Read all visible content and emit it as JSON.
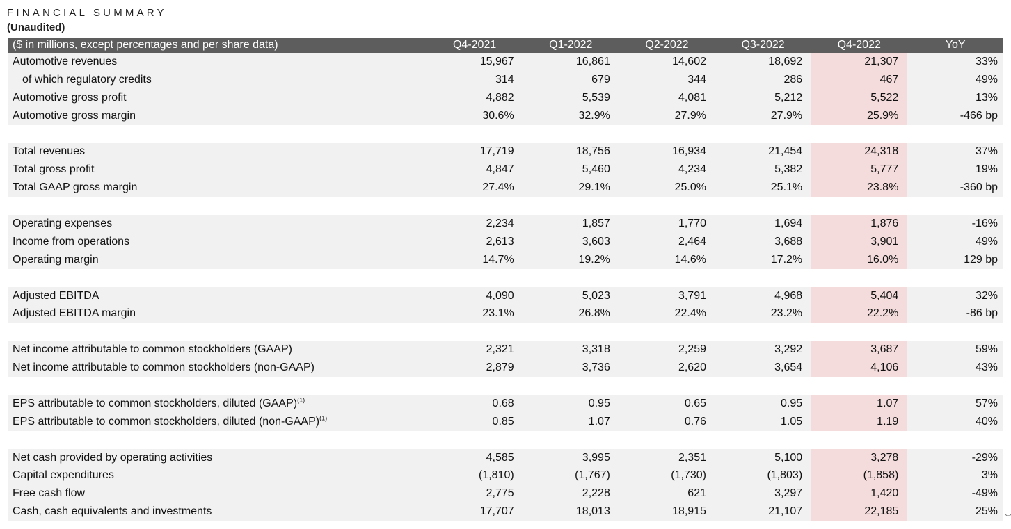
{
  "title": "FINANCIAL SUMMARY",
  "subtitle": "(Unaudited)",
  "header": {
    "label": "($ in millions, except percentages and per share data)",
    "columns": [
      "Q4-2021",
      "Q1-2022",
      "Q2-2022",
      "Q3-2022",
      "Q4-2022",
      "YoY"
    ]
  },
  "highlight_color": "#f5dcdc",
  "header_color": "#5d5d5d",
  "groups": [
    {
      "rows": [
        {
          "label": "Automotive revenues",
          "values": [
            "15,967",
            "16,861",
            "14,602",
            "18,692",
            "21,307"
          ],
          "yoy": "33%"
        },
        {
          "label": "of which regulatory credits",
          "indent": true,
          "values": [
            "314",
            "679",
            "344",
            "286",
            "467"
          ],
          "yoy": "49%"
        },
        {
          "label": "Automotive gross profit",
          "values": [
            "4,882",
            "5,539",
            "4,081",
            "5,212",
            "5,522"
          ],
          "yoy": "13%"
        },
        {
          "label": "Automotive gross margin",
          "values": [
            "30.6%",
            "32.9%",
            "27.9%",
            "27.9%",
            "25.9%"
          ],
          "yoy": "-466 bp"
        }
      ]
    },
    {
      "rows": [
        {
          "label": "Total revenues",
          "values": [
            "17,719",
            "18,756",
            "16,934",
            "21,454",
            "24,318"
          ],
          "yoy": "37%"
        },
        {
          "label": "Total gross profit",
          "values": [
            "4,847",
            "5,460",
            "4,234",
            "5,382",
            "5,777"
          ],
          "yoy": "19%"
        },
        {
          "label": "Total GAAP gross margin",
          "values": [
            "27.4%",
            "29.1%",
            "25.0%",
            "25.1%",
            "23.8%"
          ],
          "yoy": "-360 bp"
        }
      ]
    },
    {
      "rows": [
        {
          "label": "Operating expenses",
          "values": [
            "2,234",
            "1,857",
            "1,770",
            "1,694",
            "1,876"
          ],
          "yoy": "-16%"
        },
        {
          "label": "Income from operations",
          "values": [
            "2,613",
            "3,603",
            "2,464",
            "3,688",
            "3,901"
          ],
          "yoy": "49%"
        },
        {
          "label": "Operating margin",
          "values": [
            "14.7%",
            "19.2%",
            "14.6%",
            "17.2%",
            "16.0%"
          ],
          "yoy": "129 bp"
        }
      ]
    },
    {
      "rows": [
        {
          "label": "Adjusted EBITDA",
          "values": [
            "4,090",
            "5,023",
            "3,791",
            "4,968",
            "5,404"
          ],
          "yoy": "32%"
        },
        {
          "label": "Adjusted EBITDA margin",
          "values": [
            "23.1%",
            "26.8%",
            "22.4%",
            "23.2%",
            "22.2%"
          ],
          "yoy": "-86 bp"
        }
      ]
    },
    {
      "rows": [
        {
          "label": "Net income attributable to common stockholders (GAAP)",
          "values": [
            "2,321",
            "3,318",
            "2,259",
            "3,292",
            "3,687"
          ],
          "yoy": "59%"
        },
        {
          "label": "Net income attributable to common stockholders (non-GAAP)",
          "values": [
            "2,879",
            "3,736",
            "2,620",
            "3,654",
            "4,106"
          ],
          "yoy": "43%"
        }
      ]
    },
    {
      "rows": [
        {
          "label": "EPS attributable to common stockholders, diluted (GAAP)",
          "note": "(1)",
          "values": [
            "0.68",
            "0.95",
            "0.65",
            "0.95",
            "1.07"
          ],
          "yoy": "57%"
        },
        {
          "label": "EPS attributable to common stockholders, diluted (non-GAAP)",
          "note": "(1)",
          "values": [
            "0.85",
            "1.07",
            "0.76",
            "1.05",
            "1.19"
          ],
          "yoy": "40%"
        }
      ]
    },
    {
      "rows": [
        {
          "label": "Net cash provided by operating activities",
          "values": [
            "4,585",
            "3,995",
            "2,351",
            "5,100",
            "3,278"
          ],
          "yoy": "-29%"
        },
        {
          "label": "Capital expenditures",
          "values": [
            "(1,810)",
            "(1,767)",
            "(1,730)",
            "(1,803)",
            "(1,858)"
          ],
          "yoy": "3%"
        },
        {
          "label": "Free cash flow",
          "values": [
            "2,775",
            "2,228",
            "621",
            "3,297",
            "1,420"
          ],
          "yoy": "-49%"
        },
        {
          "label": "Cash, cash equivalents and investments",
          "values": [
            "17,707",
            "18,013",
            "18,915",
            "21,107",
            "22,185"
          ],
          "yoy": "25%"
        }
      ]
    }
  ],
  "cursor_glyph": "⇔"
}
